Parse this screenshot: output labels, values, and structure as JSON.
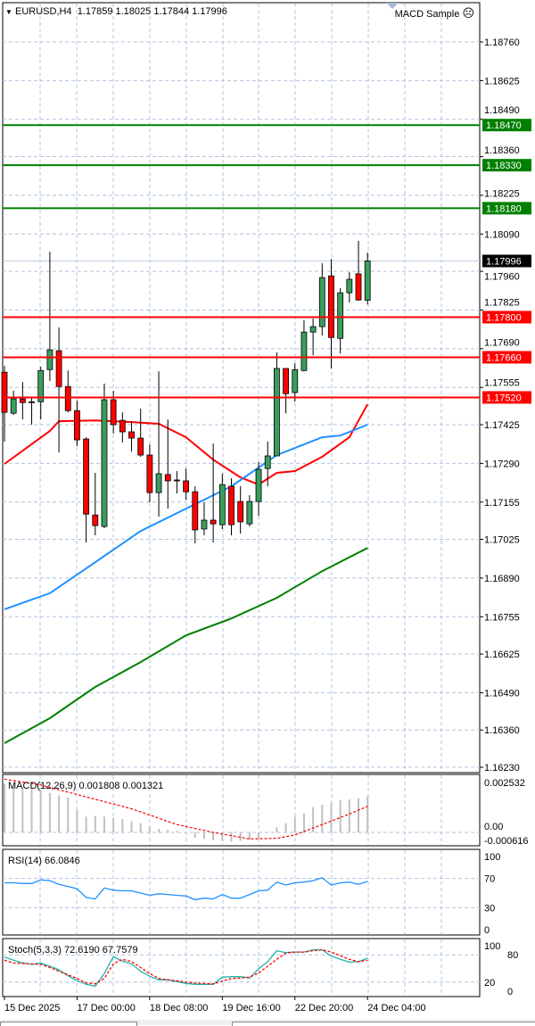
{
  "header": {
    "symbol": "EURUSD,H4",
    "ohlc": "1.17859 1.18025 1.17844 1.17996",
    "expert": "MACD Sample",
    "expert_icon": "sad-face-icon"
  },
  "colors": {
    "bull": "#3a9d5d",
    "bear": "#ff0000",
    "ma_fast": "#ff0000",
    "ma_mid": "#1e90ff",
    "ma_slow": "#008000",
    "support": "#ff0000",
    "resistance": "#008000",
    "grid": "#b0c4de",
    "macd_hist": "#c0c0c0",
    "rsi": "#1e90ff",
    "stoch_main": "#20b2aa"
  },
  "chart_data": [
    {
      "type": "candlestick",
      "title": "EURUSD,H4",
      "ylim": [
        1.1623,
        1.1889
      ],
      "grid": true,
      "y_ticks": [
        "1.18760",
        "1.18625",
        "1.18490",
        "1.18360",
        "1.18225",
        "1.18090",
        "1.17960",
        "1.17825",
        "1.17690",
        "1.17555",
        "1.17425",
        "1.17290",
        "1.17155",
        "1.17025",
        "1.16890",
        "1.16755",
        "1.16625",
        "1.16490",
        "1.16360",
        "1.16230"
      ],
      "x_ticks": [
        {
          "candle": 0,
          "label": "15 Dec 2025"
        },
        {
          "candle": 8,
          "label": "17 Dec 00:00"
        },
        {
          "candle": 16,
          "label": "18 Dec 08:00"
        },
        {
          "candle": 24,
          "label": "19 Dec 16:00"
        },
        {
          "candle": 32,
          "label": "22 Dec 20:00"
        },
        {
          "candle": 40,
          "label": "24 Dec 04:00"
        }
      ],
      "ohlc": [
        [
          1.17608,
          1.1763,
          1.17366,
          1.17468
        ],
        [
          1.17465,
          1.17543,
          1.17459,
          1.17515
        ],
        [
          1.17515,
          1.17574,
          1.17443,
          1.17502
        ],
        [
          1.17502,
          1.17521,
          1.17425,
          1.17505
        ],
        [
          1.17505,
          1.17627,
          1.17443,
          1.17614
        ],
        [
          1.17617,
          1.18028,
          1.17577,
          1.17686
        ],
        [
          1.17683,
          1.17764,
          1.17328,
          1.17558
        ],
        [
          1.17558,
          1.17614,
          1.17468,
          1.17474
        ],
        [
          1.17474,
          1.17509,
          1.1735,
          1.17372
        ],
        [
          1.17375,
          1.17381,
          1.17014,
          1.17113
        ],
        [
          1.1711,
          1.17257,
          1.17039,
          1.17073
        ],
        [
          1.1707,
          1.17568,
          1.17064,
          1.17512
        ],
        [
          1.17512,
          1.17543,
          1.17394,
          1.17425
        ],
        [
          1.1744,
          1.17468,
          1.17363,
          1.174
        ],
        [
          1.174,
          1.17437,
          1.17331,
          1.17378
        ],
        [
          1.17378,
          1.17481,
          1.17313,
          1.17319
        ],
        [
          1.17319,
          1.17356,
          1.17154,
          1.17188
        ],
        [
          1.17188,
          1.17611,
          1.17104,
          1.17254
        ],
        [
          1.17251,
          1.17443,
          1.17132,
          1.17229
        ],
        [
          1.17232,
          1.17263,
          1.17185,
          1.17229
        ],
        [
          1.17229,
          1.17272,
          1.17163,
          1.17191
        ],
        [
          1.17191,
          1.1721,
          1.17011,
          1.17058
        ],
        [
          1.17061,
          1.17154,
          1.17039,
          1.17092
        ],
        [
          1.17092,
          1.17359,
          1.17014,
          1.17079
        ],
        [
          1.17076,
          1.17254,
          1.17061,
          1.17216
        ],
        [
          1.1721,
          1.17238,
          1.17039,
          1.17076
        ],
        [
          1.17157,
          1.1721,
          1.17045,
          1.17086
        ],
        [
          1.17079,
          1.17179,
          1.1707,
          1.17157
        ],
        [
          1.17157,
          1.17294,
          1.17107,
          1.17269
        ],
        [
          1.17272,
          1.17366,
          1.1721,
          1.17316
        ],
        [
          1.17316,
          1.17677,
          1.17316,
          1.17621
        ],
        [
          1.17621,
          1.17621,
          1.17465,
          1.17533
        ],
        [
          1.17537,
          1.17639,
          1.17505,
          1.17617
        ],
        [
          1.17614,
          1.17789,
          1.17611,
          1.17748
        ],
        [
          1.17748,
          1.17795,
          1.17667,
          1.17767
        ],
        [
          1.17767,
          1.17988,
          1.17736,
          1.17938
        ],
        [
          1.17944,
          1.18003,
          1.17621,
          1.17729
        ],
        [
          1.17726,
          1.17901,
          1.17673,
          1.17885
        ],
        [
          1.17885,
          1.17957,
          1.17851,
          1.17932
        ],
        [
          1.17951,
          1.18066,
          1.17857,
          1.1786
        ],
        [
          1.17859,
          1.18025,
          1.17844,
          1.17996
        ]
      ],
      "moving_averages": [
        {
          "color_key": "ma_fast",
          "points": [
            [
              0,
              1.17288
            ],
            [
              2,
              1.17334
            ],
            [
              5,
              1.17403
            ],
            [
              6,
              1.17437
            ],
            [
              10,
              1.1744
            ],
            [
              14,
              1.17434
            ],
            [
              17,
              1.17428
            ],
            [
              20,
              1.17381
            ],
            [
              23,
              1.17303
            ],
            [
              26,
              1.17241
            ],
            [
              28,
              1.17216
            ],
            [
              30,
              1.17257
            ],
            [
              32,
              1.17263
            ],
            [
              35,
              1.17313
            ],
            [
              38,
              1.17381
            ],
            [
              40,
              1.17496
            ]
          ]
        },
        {
          "color_key": "ma_mid",
          "points": [
            [
              0,
              1.16781
            ],
            [
              5,
              1.16837
            ],
            [
              10,
              1.16945
            ],
            [
              15,
              1.17054
            ],
            [
              20,
              1.17132
            ],
            [
              25,
              1.1721
            ],
            [
              30,
              1.17319
            ],
            [
              35,
              1.17381
            ],
            [
              37,
              1.17387
            ],
            [
              40,
              1.17425
            ]
          ]
        },
        {
          "color_key": "ma_slow",
          "points": [
            [
              0,
              1.16314
            ],
            [
              5,
              1.16401
            ],
            [
              10,
              1.1651
            ],
            [
              15,
              1.16597
            ],
            [
              20,
              1.1669
            ],
            [
              25,
              1.16749
            ],
            [
              30,
              1.16821
            ],
            [
              35,
              1.16914
            ],
            [
              40,
              1.16995
            ]
          ]
        }
      ],
      "levels": [
        {
          "price": "1.18470",
          "kind": "resistance"
        },
        {
          "price": "1.18330",
          "kind": "resistance"
        },
        {
          "price": "1.18180",
          "kind": "resistance"
        },
        {
          "price": "1.17800",
          "kind": "support"
        },
        {
          "price": "1.17660",
          "kind": "support"
        },
        {
          "price": "1.17520",
          "kind": "support"
        }
      ],
      "current_price": "1.17996"
    },
    {
      "type": "bar",
      "title": "MACD(12,26,9) 0.001808 0.001321",
      "y_labels": [
        "0.002532",
        "0.00",
        "-0.000616"
      ],
      "ylim": [
        -0.000616,
        0.002532
      ],
      "histogram": [
        0.00247,
        0.00233,
        0.00227,
        0.0022,
        0.00213,
        0.002,
        0.00187,
        0.00176,
        0.00113,
        0.0008,
        0.00083,
        0.0008,
        0.00073,
        0.00067,
        0.00056,
        0.00047,
        0.00027,
        0.00017,
        0.00013,
        7e-05,
        -3e-05,
        -0.00027,
        -0.00033,
        -0.0004,
        -0.00043,
        -0.00047,
        -0.00043,
        -0.00037,
        -0.00027,
        -3e-05,
        0.00027,
        0.00047,
        0.0008,
        0.00097,
        0.00129,
        0.0014,
        0.00151,
        0.00164,
        0.00167,
        0.00173,
        0.001808
      ],
      "signal": [
        [
          0,
          0.0027
        ],
        [
          4,
          0.0024
        ],
        [
          9,
          0.0018
        ],
        [
          14,
          0.0012
        ],
        [
          19,
          0.0004
        ],
        [
          23,
          0.0
        ],
        [
          27,
          -0.00033
        ],
        [
          30,
          -0.0003
        ],
        [
          32,
          -0.00013
        ],
        [
          35,
          0.0004
        ],
        [
          38,
          0.00093
        ],
        [
          40,
          0.001321
        ]
      ]
    },
    {
      "type": "line",
      "title": "RSI(14) 66.0846",
      "y_labels": [
        "100",
        "70",
        "30",
        "0"
      ],
      "levels": [
        70,
        30
      ],
      "ylim": [
        0,
        100
      ],
      "values": [
        64,
        64,
        63,
        63,
        68,
        67,
        62,
        59,
        56,
        44,
        42,
        57,
        54,
        53,
        53,
        50,
        47,
        49,
        48,
        47,
        46,
        41,
        43,
        42,
        48,
        43,
        43,
        48,
        53,
        54,
        65,
        61,
        64,
        65,
        67,
        71,
        61,
        64,
        65,
        62,
        66.0846
      ]
    },
    {
      "type": "line",
      "title": "Stoch(5,3,3) 72.6190 67.7579",
      "y_labels": [
        "100",
        "80",
        "20",
        "0"
      ],
      "levels": [
        80,
        20
      ],
      "ylim": [
        0,
        100
      ],
      "main": [
        75,
        68,
        62,
        59,
        62,
        55,
        47,
        34,
        23,
        15,
        11,
        39,
        76,
        66,
        60,
        44,
        33,
        25,
        25,
        21,
        17,
        15,
        15,
        15,
        31,
        32,
        32,
        29,
        49,
        65,
        89,
        85,
        86,
        86,
        91,
        91,
        77,
        70,
        64,
        65,
        72.619
      ],
      "signal": [
        68,
        62,
        61,
        60,
        59,
        52,
        44,
        36,
        28,
        18,
        16,
        28,
        60,
        70,
        65,
        52,
        39,
        28,
        25,
        23,
        20,
        18,
        17,
        16,
        22,
        28,
        29,
        31,
        40,
        55,
        70,
        84,
        86,
        86,
        89,
        91,
        86,
        78,
        70,
        65,
        67.7579
      ]
    }
  ]
}
